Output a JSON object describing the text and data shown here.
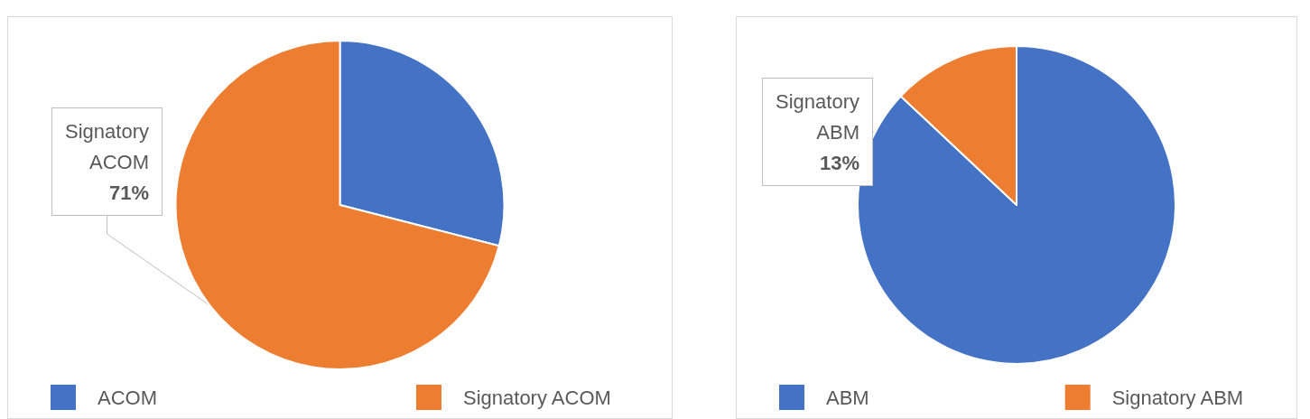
{
  "chart_data": [
    {
      "type": "pie",
      "categories": [
        "ACOM",
        "Signatory ACOM"
      ],
      "values": [
        29,
        71
      ],
      "colors": [
        "#4472c4",
        "#ed7d31"
      ],
      "value_labels": [
        null,
        "71%"
      ],
      "legend": "bottom"
    },
    {
      "type": "pie",
      "categories": [
        "ABM",
        "Signatory ABM"
      ],
      "values": [
        87,
        13
      ],
      "colors": [
        "#4472c4",
        "#ed7d31"
      ],
      "value_labels": [
        null,
        "13%"
      ],
      "legend": "bottom"
    }
  ]
}
